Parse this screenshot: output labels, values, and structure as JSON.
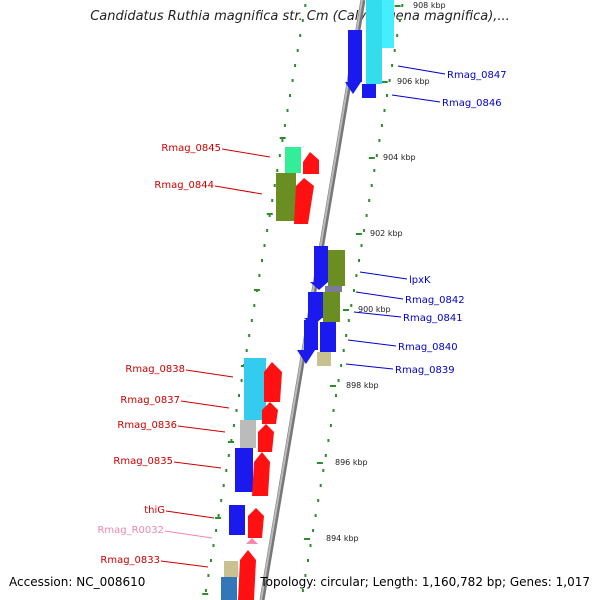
{
  "title": "Candidatus Ruthia magnifica str. Cm (Calyptogena magnifica),...",
  "footer": {
    "accession": "Accession: NC_008610",
    "topology": "Topology: circular; Length: 1,160,782 bp; Genes: 1,017"
  },
  "axis_ticks": [
    {
      "label": "908 kbp"
    },
    {
      "label": "906 kbp"
    },
    {
      "label": "904 kbp"
    },
    {
      "label": "902 kbp"
    },
    {
      "label": "900 kbp"
    },
    {
      "label": "898 kbp"
    },
    {
      "label": "896 kbp"
    },
    {
      "label": "894 kbp"
    }
  ],
  "genes_left": [
    {
      "name": "Rmag_0845"
    },
    {
      "name": "Rmag_0844"
    },
    {
      "name": "Rmag_0838"
    },
    {
      "name": "Rmag_0837"
    },
    {
      "name": "Rmag_0836"
    },
    {
      "name": "Rmag_0835"
    },
    {
      "name": "thiG"
    },
    {
      "name": "Rmag_R0032"
    },
    {
      "name": "Rmag_0833"
    }
  ],
  "genes_right": [
    {
      "name": "Rmag_0847"
    },
    {
      "name": "Rmag_0846"
    },
    {
      "name": "lpxK"
    },
    {
      "name": "Rmag_0842"
    },
    {
      "name": "Rmag_0841"
    },
    {
      "name": "Rmag_0840"
    },
    {
      "name": "Rmag_0839"
    }
  ],
  "colors": {
    "left_label": "#cc0000",
    "right_label": "#0000cc",
    "rna_label": "#ee88aa",
    "backbone": "#8c8c8c",
    "dots": "#2e8b2e"
  }
}
